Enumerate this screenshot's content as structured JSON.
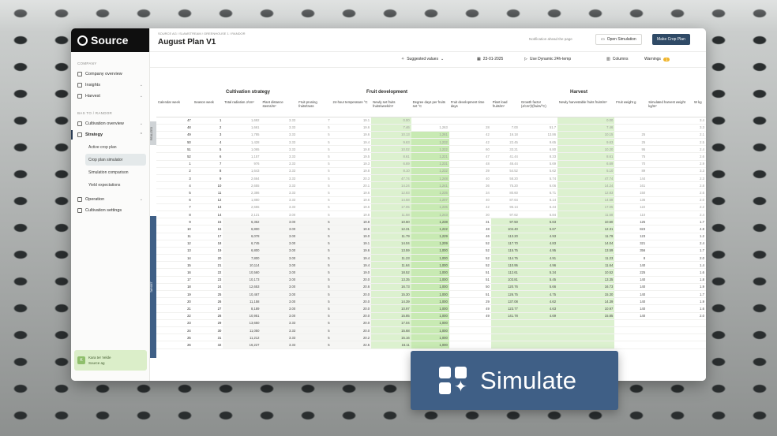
{
  "app": {
    "logo_text": "Source"
  },
  "sidebar": {
    "company_label": "COMPANY",
    "company_items": [
      {
        "label": "Company overview"
      },
      {
        "label": "Insights"
      },
      {
        "label": "Harvest"
      }
    ],
    "site_label": "BAS TO / RANDOR",
    "site_items": [
      {
        "label": "Cultivation overview"
      },
      {
        "label": "Strategy"
      }
    ],
    "strategy_sub": [
      {
        "label": "Active crop plan"
      },
      {
        "label": "Crop plan simulator"
      },
      {
        "label": "Simulation comparison"
      },
      {
        "label": "Yield expectations"
      }
    ],
    "more_items": [
      {
        "label": "Operation"
      },
      {
        "label": "Cultivation settings"
      }
    ],
    "user": {
      "initial": "K",
      "name": "Kara ter Velde",
      "org": "Source ag"
    }
  },
  "header": {
    "breadcrumb": "SOURCE AG / SLAMSTREAM / GREENHOUSE 1 / RANDOR",
    "title": "August Plan V1",
    "note": "Notification ahead the page",
    "open_label": "Open Simulation",
    "make_label": "Make Crop Plan"
  },
  "toolbar": {
    "suggested": "Suggested values",
    "date": "23-01-2025",
    "dynamic": "Use Dynamic 24h-temp",
    "columns": "Columns",
    "warnings": "Warnings",
    "warnings_count": "1"
  },
  "groups": {
    "cultivation": "Cultivation strategy",
    "fruit": "Fruit development",
    "harvest": "Harvest"
  },
  "side_labels": {
    "realized": "REALIZED",
    "target": "TARGET"
  },
  "columns": {
    "c1": [
      "Calendar week",
      "Season week"
    ],
    "c2": [
      "Total radiation J/cm²",
      "Plant distance stems/m²",
      "Fruit pruning fruits/truss",
      "24-hour temperature °C"
    ],
    "c3": [
      "Newly set fruits fruits/week/m²",
      "Degree days per fruits set °C",
      "Fruit development time days",
      "Plant load fruits/m²",
      "Growth factor (J/cm²)/(fruits/°C)"
    ],
    "c4": [
      "Newly harvestable fruits fruits/m²",
      "Fruit weight g",
      "Simulated harvest weight kg/m²",
      "W kg"
    ]
  },
  "rows": [
    [
      "47",
      "1",
      "1,692",
      "3.33",
      "7",
      "19.1",
      "0.00",
      "",
      "",
      "",
      "",
      "0.00",
      "",
      "",
      "3.4"
    ],
    [
      "48",
      "2",
      "1,661",
      "3.33",
      "5",
      "19.6",
      "7.46",
      "1,263",
      "28",
      "7.00",
      "51.7",
      "7.46",
      "",
      "",
      "3.3"
    ],
    [
      "49",
      "3",
      "1,785",
      "3.33",
      "5",
      "19.6",
      "10.13",
      "1,261",
      "42",
      "16.18",
      "13.86",
      "10.15",
      "25",
      "",
      "2.1"
    ],
    [
      "50",
      "4",
      "1,428",
      "3.33",
      "5",
      "19.4",
      "9.63",
      "1,232",
      "42",
      "22.45",
      "9.65",
      "9.63",
      "25",
      "",
      "2.5"
    ],
    [
      "51",
      "5",
      "1,065",
      "3.33",
      "5",
      "19.8",
      "10.02",
      "1,222",
      "60",
      "33.21",
      "6.80",
      "10.20",
      "95",
      "",
      "2.4"
    ],
    [
      "52",
      "6",
      "1,157",
      "3.33",
      "5",
      "19.5",
      "8.61",
      "1,221",
      "47",
      "41.44",
      "8.33",
      "8.61",
      "75",
      "",
      "2.6"
    ],
    [
      "1",
      "7",
      "976",
      "3.33",
      "5",
      "19.3",
      "6.69",
      "1,231",
      "48",
      "46.44",
      "5.69",
      "6.69",
      "70",
      "",
      "2.9"
    ],
    [
      "2",
      "8",
      "1,643",
      "3.33",
      "5",
      "19.8",
      "8.10",
      "1,232",
      "39",
      "54.52",
      "5.62",
      "5.10",
      "89",
      "",
      "3.3"
    ],
    [
      "3",
      "9",
      "2,664",
      "3.33",
      "5",
      "20.3",
      "47.74",
      "1,248",
      "40",
      "58.20",
      "5.74",
      "47.74",
      "144",
      "",
      "2.3"
    ],
    [
      "4",
      "10",
      "2,655",
      "3.33",
      "5",
      "20.1",
      "14.24",
      "1,241",
      "36",
      "75.20",
      "6.06",
      "14.24",
      "161",
      "",
      "2.8"
    ],
    [
      "5",
      "11",
      "2,386",
      "3.33",
      "5",
      "19.6",
      "12.83",
      "1,235",
      "34",
      "80.60",
      "6.71",
      "12.83",
      "150",
      "",
      "2.6"
    ],
    [
      "6",
      "12",
      "1,880",
      "3.33",
      "5",
      "19.6",
      "14.58",
      "1,207",
      "40",
      "87.64",
      "6.14",
      "14.58",
      "136",
      "",
      "2.0"
    ],
    [
      "7",
      "13",
      "2,655",
      "3.33",
      "5",
      "19.6",
      "17.05",
      "1,235",
      "42",
      "95.14",
      "6.44",
      "17.05",
      "122",
      "",
      "2.2"
    ],
    [
      "8",
      "14",
      "2,121",
      "3.00",
      "5",
      "19.8",
      "11.58",
      "1,243",
      "30",
      "97.62",
      "6.84",
      "11.58",
      "110",
      "",
      "2.4"
    ],
    [
      "9",
      "15",
      "6,362",
      "3.00",
      "5",
      "19.8",
      "10.60",
      "1,238",
      "31",
      "97.50",
      "5.63",
      "10.60",
      "125",
      "",
      "1.7"
    ],
    [
      "10",
      "16",
      "6,800",
      "3.00",
      "5",
      "19.6",
      "12.31",
      "1,222",
      "48",
      "104.40",
      "5.67",
      "12.31",
      "823",
      "",
      "4.8"
    ],
    [
      "11",
      "17",
      "6,078",
      "3.00",
      "5",
      "19.0",
      "11.79",
      "1,229",
      "46",
      "113.20",
      "4.93",
      "11.79",
      "123",
      "",
      "1.2"
    ],
    [
      "12",
      "18",
      "6,745",
      "3.00",
      "5",
      "19.1",
      "14.04",
      "1,209",
      "52",
      "117.70",
      "4.83",
      "14.04",
      "321",
      "",
      "2.4"
    ],
    [
      "13",
      "19",
      "6,800",
      "3.00",
      "5",
      "19.6",
      "13.59",
      "1,000",
      "52",
      "115.75",
      "4.95",
      "13.59",
      "356",
      "",
      "1.7"
    ],
    [
      "14",
      "20",
      "7,800",
      "3.00",
      "5",
      "19.4",
      "11.23",
      "1,000",
      "52",
      "114.75",
      "4.91",
      "11.23",
      "8",
      "",
      "2.0"
    ],
    [
      "15",
      "21",
      "10,114",
      "3.00",
      "5",
      "19.4",
      "11.64",
      "1,000",
      "52",
      "110.95",
      "4.96",
      "11.64",
      "140",
      "",
      "1.4"
    ],
    [
      "16",
      "22",
      "10,560",
      "3.00",
      "5",
      "19.0",
      "18.52",
      "1,000",
      "51",
      "112.61",
      "5.34",
      "10.52",
      "225",
      "",
      "1.6"
    ],
    [
      "17",
      "23",
      "10,173",
      "3.00",
      "5",
      "20.0",
      "13.35",
      "1,000",
      "51",
      "103.81",
      "5.45",
      "13.35",
      "140",
      "",
      "1.8"
    ],
    [
      "18",
      "24",
      "12,653",
      "3.00",
      "5",
      "20.6",
      "16.73",
      "1,000",
      "50",
      "120.76",
      "5.66",
      "16.73",
      "140",
      "",
      "1.9"
    ],
    [
      "19",
      "25",
      "10,467",
      "3.00",
      "5",
      "20.0",
      "15.30",
      "1,000",
      "51",
      "126.75",
      "4.75",
      "15.30",
      "140",
      "",
      "1.7"
    ],
    [
      "20",
      "26",
      "11,158",
      "3.00",
      "5",
      "20.0",
      "14.39",
      "1,000",
      "29",
      "137.08",
      "4.62",
      "14.39",
      "140",
      "",
      "1.9"
    ],
    [
      "21",
      "27",
      "8,189",
      "3.00",
      "5",
      "20.0",
      "10.97",
      "1,000",
      "49",
      "123.77",
      "4.63",
      "10.97",
      "140",
      "",
      "1.6"
    ],
    [
      "22",
      "28",
      "10,951",
      "3.00",
      "5",
      "20.0",
      "15.85",
      "1,000",
      "49",
      "141.78",
      "4.69",
      "15.85",
      "140",
      "",
      "2.0"
    ],
    [
      "23",
      "29",
      "13,650",
      "3.33",
      "5",
      "20.0",
      "17.04",
      "1,000",
      "",
      "",
      "",
      "",
      "",
      "",
      ""
    ],
    [
      "24",
      "30",
      "11,050",
      "3.33",
      "5",
      "20.0",
      "15.68",
      "1,000",
      "",
      "",
      "",
      "",
      "",
      "",
      ""
    ],
    [
      "25",
      "31",
      "11,212",
      "3.33",
      "5",
      "20.2",
      "15.16",
      "1,000",
      "",
      "",
      "",
      "",
      "",
      "",
      ""
    ],
    [
      "26",
      "32",
      "16,227",
      "3.33",
      "5",
      "22.5",
      "16.11",
      "1,000",
      "",
      "",
      "",
      "",
      "",
      "",
      ""
    ]
  ],
  "simulate": {
    "label": "Simulate"
  }
}
